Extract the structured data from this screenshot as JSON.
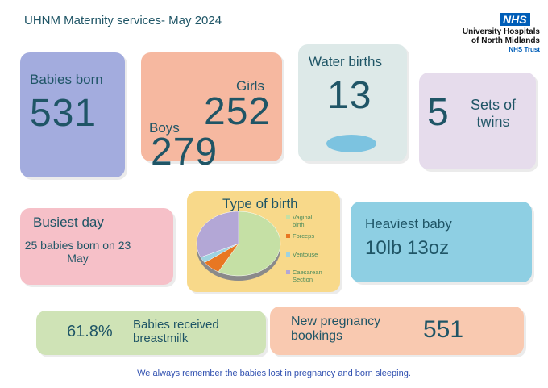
{
  "header": {
    "title": "UHNM Maternity services- May 2024",
    "logo": "NHS",
    "org_line1": "University Hospitals",
    "org_line2": "of North Midlands",
    "org_line3": "NHS Trust"
  },
  "tiles": {
    "babies_born": {
      "label": "Babies born",
      "value": "531"
    },
    "sexes": {
      "girls_label": "Girls",
      "girls_value": "252",
      "boys_label": "Boys",
      "boys_value": "279"
    },
    "water_births": {
      "label": "Water births",
      "value": "13"
    },
    "twins": {
      "value": "5",
      "label": "Sets of twins"
    },
    "busiest_day": {
      "label": "Busiest day",
      "text": "25 babies born on 23 May"
    },
    "heaviest_baby": {
      "label": "Heaviest baby",
      "value": "10lb 13oz"
    },
    "breastmilk": {
      "value": "61.8%",
      "label": "Babies received breastmilk"
    },
    "bookings": {
      "label": "New pregnancy bookings",
      "value": "551"
    }
  },
  "chart_data": {
    "type": "pie",
    "title": "Type of birth",
    "categories": [
      "Vaginal birth",
      "Forceps",
      "Ventouse",
      "Caesarean Section"
    ],
    "values": [
      58,
      7,
      3,
      32
    ],
    "colors": [
      "#c5e0a5",
      "#e87722",
      "#9fd3e0",
      "#b3a7d6"
    ]
  },
  "footer": "We always remember the babies lost in pregnancy and born sleeping."
}
